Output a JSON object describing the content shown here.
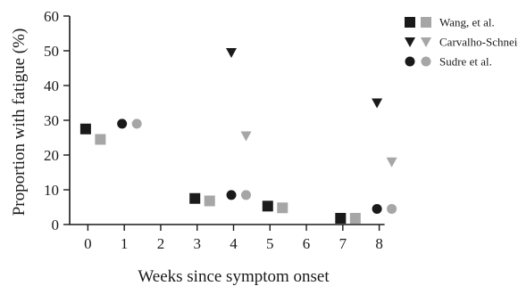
{
  "chart_data": {
    "type": "scatter",
    "xlabel": "Weeks since symptom onset",
    "ylabel": "Proportion with fatigue (%)",
    "xlim": [
      -0.5,
      8.5
    ],
    "ylim": [
      0,
      60
    ],
    "x_ticks": [
      0,
      1,
      2,
      3,
      4,
      5,
      6,
      7,
      8
    ],
    "y_ticks": [
      0,
      10,
      20,
      30,
      40,
      50,
      60
    ],
    "grid": false,
    "legend_position": "top-right",
    "colors": {
      "dark": "#1a1a1a",
      "light": "#a6a6a6"
    },
    "series": [
      {
        "name": "Wang, et al.",
        "marker": "square",
        "variant": "dark",
        "points": [
          [
            0,
            27.5
          ],
          [
            3,
            7.5
          ],
          [
            5,
            5.3
          ],
          [
            7,
            1.8
          ]
        ]
      },
      {
        "name": "Wang, et al.",
        "marker": "square",
        "variant": "light",
        "points": [
          [
            0,
            24.5
          ],
          [
            3,
            6.8
          ],
          [
            5,
            4.8
          ],
          [
            7,
            1.8
          ]
        ]
      },
      {
        "name": "Carvalho-Schneider",
        "marker": "triangle-down",
        "variant": "dark",
        "points": [
          [
            4,
            49.5
          ],
          [
            8,
            35
          ]
        ]
      },
      {
        "name": "Carvalho-Schneider",
        "marker": "triangle-down",
        "variant": "light",
        "points": [
          [
            4,
            25.5
          ],
          [
            8,
            18
          ]
        ]
      },
      {
        "name": "Sudre et al.",
        "marker": "circle",
        "variant": "dark",
        "points": [
          [
            1,
            29
          ],
          [
            4,
            8.5
          ],
          [
            8,
            4.5
          ]
        ]
      },
      {
        "name": "Sudre et al.",
        "marker": "circle",
        "variant": "light",
        "points": [
          [
            1,
            29
          ],
          [
            4,
            8.5
          ],
          [
            8,
            4.5
          ]
        ]
      }
    ],
    "legend": [
      {
        "label": "Wang, et al.",
        "marker": "square"
      },
      {
        "label": "Carvalho-Schneider",
        "marker": "triangle-down"
      },
      {
        "label": "Sudre et al.",
        "marker": "circle"
      }
    ]
  }
}
